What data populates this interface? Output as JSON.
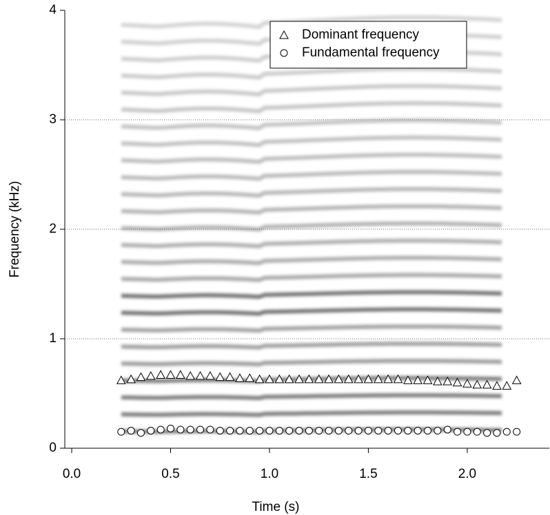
{
  "chart_data": {
    "type": "scatter",
    "x_label": "Time (s)",
    "y_label": "Frequency (kHz)",
    "xlim": [
      -0.035,
      2.415
    ],
    "ylim": [
      0,
      4
    ],
    "xticks": [
      {
        "value": 0,
        "label": "0.0"
      },
      0.5,
      {
        "value": 1,
        "label": "1.0"
      },
      1.5,
      {
        "value": 2,
        "label": "2.0"
      }
    ],
    "yticks": [
      0,
      1,
      2,
      3,
      4
    ],
    "grid": true,
    "legend": "top-right",
    "series": [
      {
        "name": "Dominant frequency",
        "marker": "triangle",
        "color": "#ffffff",
        "x": [
          0.25,
          0.3,
          0.35,
          0.4,
          0.45,
          0.5,
          0.55,
          0.6,
          0.65,
          0.7,
          0.75,
          0.8,
          0.85,
          0.9,
          0.95,
          1.0,
          1.05,
          1.1,
          1.15,
          1.2,
          1.25,
          1.3,
          1.35,
          1.4,
          1.45,
          1.5,
          1.55,
          1.6,
          1.65,
          1.7,
          1.75,
          1.8,
          1.85,
          1.9,
          1.95,
          2.0,
          2.05,
          2.1,
          2.15,
          2.2,
          2.25
        ],
        "values": [
          0.62,
          0.63,
          0.65,
          0.66,
          0.67,
          0.67,
          0.67,
          0.66,
          0.66,
          0.66,
          0.65,
          0.65,
          0.64,
          0.64,
          0.63,
          0.63,
          0.63,
          0.63,
          0.63,
          0.63,
          0.63,
          0.63,
          0.63,
          0.63,
          0.63,
          0.63,
          0.63,
          0.63,
          0.63,
          0.62,
          0.62,
          0.62,
          0.61,
          0.61,
          0.6,
          0.59,
          0.58,
          0.58,
          0.57,
          0.57,
          0.62
        ]
      },
      {
        "name": "Fundamental frequency",
        "marker": "circle",
        "color": "#ffffff",
        "x": [
          0.25,
          0.3,
          0.35,
          0.4,
          0.45,
          0.5,
          0.55,
          0.6,
          0.65,
          0.7,
          0.75,
          0.8,
          0.85,
          0.9,
          0.95,
          1.0,
          1.05,
          1.1,
          1.15,
          1.2,
          1.25,
          1.3,
          1.35,
          1.4,
          1.45,
          1.5,
          1.55,
          1.6,
          1.65,
          1.7,
          1.75,
          1.8,
          1.85,
          1.9,
          1.95,
          2.0,
          2.05,
          2.1,
          2.15,
          2.2,
          2.25
        ],
        "values": [
          0.15,
          0.16,
          0.14,
          0.16,
          0.17,
          0.18,
          0.17,
          0.17,
          0.17,
          0.17,
          0.16,
          0.16,
          0.16,
          0.16,
          0.16,
          0.16,
          0.16,
          0.16,
          0.16,
          0.16,
          0.16,
          0.16,
          0.16,
          0.16,
          0.16,
          0.16,
          0.16,
          0.16,
          0.16,
          0.16,
          0.16,
          0.16,
          0.16,
          0.17,
          0.15,
          0.15,
          0.15,
          0.14,
          0.14,
          0.15,
          0.15
        ]
      }
    ]
  }
}
